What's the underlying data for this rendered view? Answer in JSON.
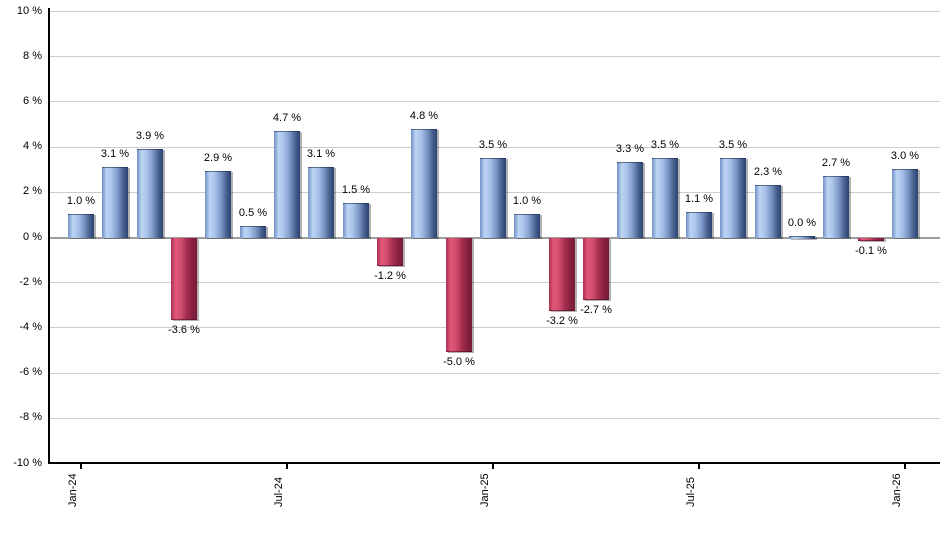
{
  "chart_data": {
    "type": "bar",
    "title": "",
    "xlabel": "",
    "ylabel": "",
    "ylim": [
      -10,
      10
    ],
    "ytick_step": 2,
    "grid": true,
    "legend": false,
    "ytick_values": [
      10,
      8,
      6,
      4,
      2,
      0,
      -2,
      -4,
      -6,
      -8,
      -10
    ],
    "ytick_labels": [
      "10 %",
      "8 %",
      "6 %",
      "4 %",
      "2 %",
      "0 %",
      "-2 %",
      "-4 %",
      "-6 %",
      "-8 %",
      "-10 %"
    ],
    "values": [
      1.0,
      3.1,
      3.9,
      -3.6,
      2.9,
      0.5,
      4.7,
      3.1,
      1.5,
      -1.2,
      4.8,
      -5.0,
      3.5,
      1.0,
      -3.2,
      -2.7,
      3.3,
      3.5,
      1.1,
      3.5,
      2.3,
      0.0,
      2.7,
      -0.1,
      3.0
    ],
    "value_labels": [
      "1.0 %",
      "3.1 %",
      "3.9 %",
      "-3.6 %",
      "2.9 %",
      "0.5 %",
      "4.7 %",
      "3.1 %",
      "1.5 %",
      "-1.2 %",
      "4.8 %",
      "-5.0 %",
      "3.5 %",
      "1.0 %",
      "-3.2 %",
      "-2.7 %",
      "3.3 %",
      "3.5 %",
      "1.1 %",
      "3.5 %",
      "2.3 %",
      "0.0 %",
      "2.7 %",
      "-0.1 %",
      "3.0 %"
    ],
    "xticks": [
      {
        "label": "Jan-24",
        "bar_index": 0
      },
      {
        "label": "Jul-24",
        "bar_index": 6
      },
      {
        "label": "Jan-25",
        "bar_index": 12
      },
      {
        "label": "Jul-25",
        "bar_index": 18
      },
      {
        "label": "Jan-26",
        "bar_index": 24
      }
    ],
    "colors": {
      "positive_bar_edge": "#7090c5",
      "positive_bar_highlight": "#bdd4f4",
      "positive_bar_dark": "#2a4273",
      "negative_bar_edge": "#a83153",
      "negative_bar_highlight": "#e25878",
      "negative_bar_dark": "#761a35",
      "gridline": "#cccccc",
      "zero_line": "#9e9e9e",
      "axis": "#000000",
      "label_text": "#000000",
      "background": "#ffffff"
    }
  }
}
